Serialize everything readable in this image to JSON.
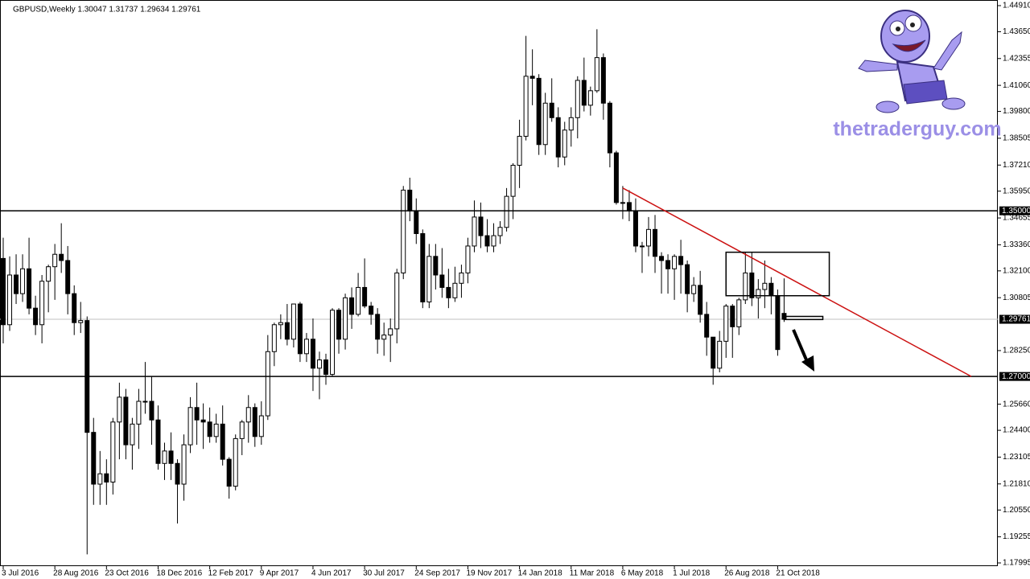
{
  "chart_data": {
    "type": "candlestick",
    "header": "GBPUSD,Weekly  1.30047 1.31737 1.29634 1.29761",
    "categories": [
      "3 Jul 2016",
      null,
      null,
      null,
      null,
      null,
      null,
      null,
      "28 Aug 2016",
      null,
      null,
      null,
      null,
      null,
      null,
      null,
      "23 Oct 2016",
      null,
      null,
      null,
      null,
      null,
      null,
      null,
      "18 Dec 2016",
      null,
      null,
      null,
      null,
      null,
      null,
      null,
      "12 Feb 2017",
      null,
      null,
      null,
      null,
      null,
      null,
      null,
      "9 Apr 2017",
      null,
      null,
      null,
      null,
      null,
      null,
      null,
      "4 Jun 2017",
      null,
      null,
      null,
      null,
      null,
      null,
      null,
      "30 Jul 2017",
      null,
      null,
      null,
      null,
      null,
      null,
      null,
      "24 Sep 2017",
      null,
      null,
      null,
      null,
      null,
      null,
      null,
      "19 Nov 2017",
      null,
      null,
      null,
      null,
      null,
      null,
      null,
      "14 Jan 2018",
      null,
      null,
      null,
      null,
      null,
      null,
      null,
      "11 Mar 2018",
      null,
      null,
      null,
      null,
      null,
      null,
      null,
      "6 May 2018",
      null,
      null,
      null,
      null,
      null,
      null,
      null,
      "1 Jul 2018",
      null,
      null,
      null,
      null,
      null,
      null,
      null,
      "26 Aug 2018",
      null,
      null,
      null,
      null,
      null,
      null,
      null,
      "21 Oct 2018",
      null
    ],
    "open": [
      1.327,
      1.295,
      1.319,
      1.31,
      1.322,
      1.303,
      1.295,
      1.316,
      1.323,
      1.329,
      1.326,
      1.31,
      1.296,
      1.297,
      1.243,
      1.218,
      1.223,
      1.219,
      1.248,
      1.26,
      1.237,
      1.247,
      1.258,
      1.258,
      1.249,
      1.228,
      1.234,
      1.228,
      1.218,
      1.237,
      1.255,
      1.249,
      1.248,
      1.241,
      1.247,
      1.23,
      1.217,
      1.24,
      1.248,
      1.255,
      1.241,
      1.251,
      1.282,
      1.295,
      1.296,
      1.288,
      1.305,
      1.281,
      1.288,
      1.274,
      1.278,
      1.271,
      1.302,
      1.288,
      1.308,
      1.3,
      1.313,
      1.304,
      1.3,
      1.288,
      1.29,
      1.293,
      1.32,
      1.36,
      1.35,
      1.339,
      1.306,
      1.328,
      1.319,
      1.313,
      1.308,
      1.315,
      1.32,
      1.333,
      1.347,
      1.338,
      1.333,
      1.338,
      1.342,
      1.357,
      1.372,
      1.386,
      1.415,
      1.414,
      1.382,
      1.402,
      1.395,
      1.376,
      1.389,
      1.395,
      1.413,
      1.401,
      1.408,
      1.424,
      1.402,
      1.378,
      1.354,
      1.354,
      1.35,
      1.333,
      1.333,
      1.341,
      1.328,
      1.326,
      1.322,
      1.328,
      1.324,
      1.31,
      1.314,
      1.3,
      1.289,
      1.274,
      1.287,
      1.304,
      1.294,
      1.307,
      1.32,
      1.308,
      1.312,
      1.315,
      1.309,
      1.30047
    ],
    "high": [
      1.337,
      1.328,
      1.329,
      1.329,
      1.337,
      1.309,
      1.319,
      1.324,
      1.334,
      1.344,
      1.333,
      1.314,
      1.306,
      1.299,
      1.25,
      1.234,
      1.23,
      1.25,
      1.267,
      1.264,
      1.25,
      1.264,
      1.277,
      1.27,
      1.256,
      1.238,
      1.243,
      1.23,
      1.242,
      1.26,
      1.267,
      1.257,
      1.255,
      1.252,
      1.256,
      1.231,
      1.242,
      1.249,
      1.261,
      1.257,
      1.258,
      1.29,
      1.296,
      1.3,
      1.305,
      1.305,
      1.306,
      1.291,
      1.298,
      1.282,
      1.281,
      1.303,
      1.303,
      1.31,
      1.313,
      1.32,
      1.327,
      1.306,
      1.303,
      1.296,
      1.298,
      1.322,
      1.362,
      1.366,
      1.356,
      1.341,
      1.334,
      1.334,
      1.332,
      1.322,
      1.323,
      1.324,
      1.337,
      1.355,
      1.354,
      1.346,
      1.344,
      1.345,
      1.361,
      1.373,
      1.394,
      1.4345,
      1.428,
      1.416,
      1.407,
      1.414,
      1.4,
      1.393,
      1.4,
      1.415,
      1.424,
      1.41,
      1.4377,
      1.426,
      1.403,
      1.379,
      1.362,
      1.36,
      1.356,
      1.335,
      1.347,
      1.348,
      1.33,
      1.329,
      1.329,
      1.336,
      1.326,
      1.318,
      1.321,
      1.306,
      1.289,
      1.292,
      1.305,
      1.305,
      1.308,
      1.33,
      1.33,
      1.317,
      1.326,
      1.318,
      1.312,
      1.31737
    ],
    "low": [
      1.286,
      1.292,
      1.305,
      1.306,
      1.3,
      1.29,
      1.286,
      1.301,
      1.307,
      1.32,
      1.3,
      1.29,
      1.291,
      1.1841,
      1.208,
      1.208,
      1.208,
      1.213,
      1.23,
      1.23,
      1.225,
      1.235,
      1.252,
      1.237,
      1.225,
      1.22,
      1.22,
      1.199,
      1.21,
      1.233,
      1.237,
      1.235,
      1.238,
      1.238,
      1.227,
      1.211,
      1.215,
      1.232,
      1.238,
      1.236,
      1.237,
      1.249,
      1.275,
      1.288,
      1.285,
      1.284,
      1.277,
      1.277,
      1.263,
      1.259,
      1.266,
      1.27,
      1.281,
      1.283,
      1.293,
      1.299,
      1.303,
      1.295,
      1.281,
      1.28,
      1.277,
      1.286,
      1.317,
      1.345,
      1.334,
      1.303,
      1.303,
      1.312,
      1.308,
      1.303,
      1.306,
      1.308,
      1.315,
      1.33,
      1.332,
      1.33,
      1.33,
      1.334,
      1.34,
      1.346,
      1.361,
      1.384,
      1.401,
      1.377,
      1.377,
      1.393,
      1.371,
      1.372,
      1.381,
      1.385,
      1.398,
      1.396,
      1.407,
      1.394,
      1.371,
      1.353,
      1.346,
      1.345,
      1.33,
      1.32,
      1.328,
      1.32,
      1.31,
      1.31,
      1.307,
      1.31,
      1.301,
      1.306,
      1.296,
      1.28,
      1.266,
      1.272,
      1.279,
      1.279,
      1.29,
      1.305,
      1.304,
      1.298,
      1.303,
      1.3,
      1.28,
      1.29634
    ],
    "close": [
      1.295,
      1.319,
      1.31,
      1.322,
      1.303,
      1.295,
      1.316,
      1.323,
      1.329,
      1.326,
      1.31,
      1.296,
      1.297,
      1.243,
      1.218,
      1.223,
      1.219,
      1.248,
      1.26,
      1.237,
      1.247,
      1.258,
      1.258,
      1.249,
      1.228,
      1.234,
      1.228,
      1.218,
      1.237,
      1.255,
      1.249,
      1.248,
      1.241,
      1.247,
      1.23,
      1.217,
      1.24,
      1.248,
      1.255,
      1.241,
      1.251,
      1.282,
      1.295,
      1.296,
      1.288,
      1.305,
      1.281,
      1.288,
      1.274,
      1.278,
      1.271,
      1.302,
      1.288,
      1.308,
      1.3,
      1.313,
      1.304,
      1.3,
      1.288,
      1.29,
      1.293,
      1.32,
      1.36,
      1.35,
      1.339,
      1.306,
      1.328,
      1.319,
      1.313,
      1.308,
      1.315,
      1.32,
      1.333,
      1.347,
      1.338,
      1.333,
      1.338,
      1.342,
      1.357,
      1.372,
      1.386,
      1.415,
      1.414,
      1.382,
      1.402,
      1.395,
      1.376,
      1.389,
      1.395,
      1.413,
      1.401,
      1.408,
      1.424,
      1.402,
      1.378,
      1.354,
      1.354,
      1.35,
      1.333,
      1.333,
      1.341,
      1.328,
      1.326,
      1.322,
      1.328,
      1.324,
      1.31,
      1.314,
      1.3,
      1.289,
      1.274,
      1.287,
      1.304,
      1.294,
      1.307,
      1.32,
      1.308,
      1.312,
      1.315,
      1.309,
      1.283,
      1.29761
    ],
    "ylim": [
      1.17995,
      1.4491
    ],
    "yticks": [
      {
        "value": 1.4491,
        "label": "1.44910"
      },
      {
        "value": 1.4365,
        "label": "1.43650"
      },
      {
        "value": 1.42355,
        "label": "1.42355"
      },
      {
        "value": 1.4106,
        "label": "1.41060"
      },
      {
        "value": 1.398,
        "label": "1.39800"
      },
      {
        "value": 1.38505,
        "label": "1.38505"
      },
      {
        "value": 1.3721,
        "label": "1.37210"
      },
      {
        "value": 1.3595,
        "label": "1.35950"
      },
      {
        "value": 1.34655,
        "label": "1.34655"
      },
      {
        "value": 1.3336,
        "label": "1.33360"
      },
      {
        "value": 1.321,
        "label": "1.32100"
      },
      {
        "value": 1.30805,
        "label": "1.30805"
      },
      {
        "value": 1.2825,
        "label": "1.28250"
      },
      {
        "value": 1.2566,
        "label": "1.25660"
      },
      {
        "value": 1.244,
        "label": "1.24400"
      },
      {
        "value": 1.23105,
        "label": "1.23105"
      },
      {
        "value": 1.2181,
        "label": "1.21810"
      },
      {
        "value": 1.2055,
        "label": "1.20550"
      },
      {
        "value": 1.19255,
        "label": "1.19255"
      },
      {
        "value": 1.17995,
        "label": "1.17995"
      }
    ],
    "levels": [
      {
        "value": 1.35,
        "label": "1.35000"
      },
      {
        "value": 1.27,
        "label": "1.27000"
      }
    ],
    "current_price": {
      "value": 1.29761,
      "label": "1.29761"
    },
    "trendline": {
      "from": {
        "index": 96,
        "value": 1.361
      },
      "to": {
        "index": 150,
        "value": 1.27
      },
      "color": "#cc1111"
    },
    "box": {
      "from_index": 112,
      "to_index": 128,
      "top": 1.33,
      "bottom": 1.309
    },
    "small_box": {
      "from_index": 121,
      "to_index": 127,
      "top": 1.299,
      "bottom": 1.2975
    },
    "bull_color": "#ffffff",
    "bear_color": "#000000",
    "watermark": "thetraderguy.com"
  }
}
